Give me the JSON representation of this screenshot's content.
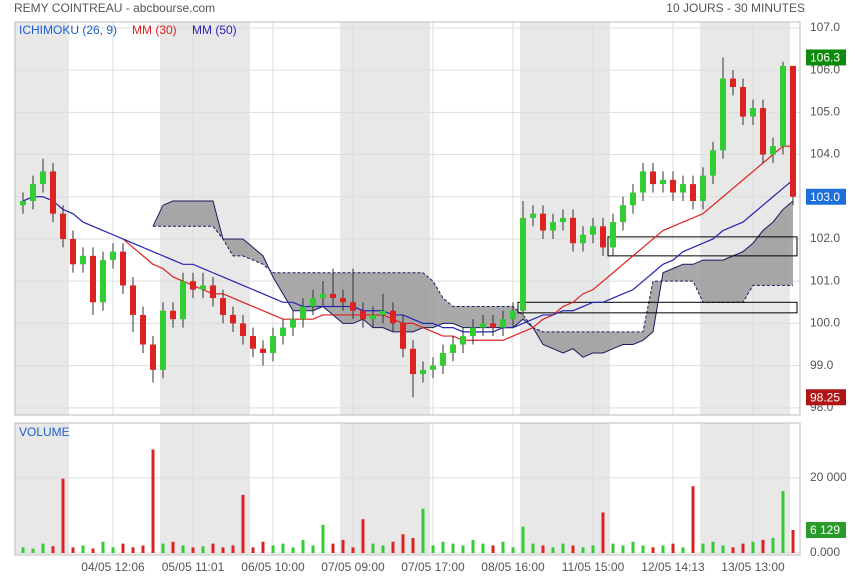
{
  "chart_data": {
    "type": "candlestick",
    "title": "REMY COINTREAU - abcbourse.com",
    "subtitle": "10 JOURS - 30 MINUTES",
    "xticks": [
      {
        "value": 9,
        "label": "04/05 12:06"
      },
      {
        "value": 17,
        "label": "05/05 11:01"
      },
      {
        "value": 25,
        "label": "06/05 10:00"
      },
      {
        "value": 33,
        "label": "07/05 09:00"
      },
      {
        "value": 41,
        "label": "07/05 17:00"
      },
      {
        "value": 49,
        "label": "08/05 16:00"
      },
      {
        "value": 57,
        "label": "11/05 15:00"
      },
      {
        "value": 65,
        "label": "12/05 14:13"
      },
      {
        "value": 73,
        "label": "13/05 13:00"
      }
    ],
    "ylim": [
      97.83,
      107.14
    ],
    "yticks": [
      {
        "value": 98,
        "label": "98.0"
      },
      {
        "value": 99,
        "label": "99.0"
      },
      {
        "value": 100,
        "label": "100.0"
      },
      {
        "value": 101,
        "label": "101.0"
      },
      {
        "value": 102,
        "label": "102.0"
      },
      {
        "value": 103,
        "label": "103.0"
      },
      {
        "value": 104,
        "label": "104.0"
      },
      {
        "value": 105,
        "label": "105.0"
      },
      {
        "value": 106,
        "label": "106.0"
      },
      {
        "value": 107,
        "label": "107.0"
      }
    ],
    "grid": true,
    "candles": {
      "up_color": "#33cc33",
      "down_color": "#dd2222",
      "open": [
        102.8,
        102.9,
        103.3,
        103.6,
        102.6,
        102.0,
        101.4,
        101.6,
        100.5,
        101.5,
        101.7,
        100.9,
        100.2,
        99.5,
        98.9,
        100.3,
        100.1,
        101.0,
        100.8,
        100.9,
        100.6,
        100.2,
        100.0,
        99.7,
        99.4,
        99.3,
        99.7,
        99.9,
        100.1,
        100.4,
        100.6,
        100.7,
        100.6,
        100.5,
        100.3,
        100.1,
        100.2,
        100.3,
        100.0,
        99.4,
        98.8,
        98.9,
        99.0,
        99.3,
        99.5,
        99.7,
        99.9,
        100.0,
        99.9,
        100.1,
        100.3,
        102.5,
        102.6,
        102.2,
        102.4,
        102.5,
        101.9,
        102.1,
        102.3,
        101.8,
        102.4,
        102.8,
        103.1,
        103.6,
        103.3,
        103.4,
        103.1,
        103.3,
        102.9,
        103.5,
        104.1,
        105.8,
        105.6,
        104.9,
        105.1,
        104.0,
        104.2,
        106.1
      ],
      "high": [
        103.1,
        103.5,
        103.9,
        103.8,
        102.8,
        102.2,
        101.8,
        101.8,
        101.7,
        101.9,
        101.9,
        101.1,
        100.4,
        99.7,
        100.5,
        100.5,
        101.2,
        101.2,
        101.2,
        101.1,
        100.8,
        100.4,
        100.2,
        99.9,
        99.6,
        99.9,
        100.1,
        100.3,
        100.6,
        100.8,
        101.0,
        101.3,
        100.8,
        101.3,
        100.5,
        100.4,
        100.7,
        100.5,
        100.2,
        99.6,
        99.1,
        99.2,
        99.5,
        99.7,
        99.9,
        100.1,
        100.2,
        100.2,
        100.3,
        100.5,
        102.9,
        102.8,
        102.8,
        102.6,
        102.7,
        102.7,
        102.3,
        102.5,
        102.5,
        102.6,
        103.0,
        103.3,
        103.8,
        103.8,
        103.6,
        103.6,
        103.5,
        103.5,
        103.7,
        104.3,
        106.3,
        106.0,
        105.8,
        105.3,
        105.3,
        104.4,
        106.2,
        106.1
      ],
      "low": [
        102.6,
        102.7,
        103.1,
        102.4,
        101.8,
        101.2,
        101.2,
        100.2,
        100.3,
        101.3,
        100.7,
        99.8,
        99.3,
        98.6,
        98.7,
        99.9,
        99.9,
        100.6,
        100.6,
        100.4,
        100.0,
        99.8,
        99.5,
        99.2,
        99.0,
        99.1,
        99.5,
        99.7,
        99.9,
        100.2,
        100.4,
        100.4,
        100.3,
        100.1,
        99.9,
        99.9,
        100.0,
        99.8,
        99.2,
        98.25,
        98.6,
        98.7,
        98.8,
        99.1,
        99.3,
        99.5,
        99.7,
        99.7,
        99.7,
        99.9,
        100.2,
        102.3,
        102.0,
        102.0,
        102.2,
        101.7,
        101.7,
        101.9,
        101.6,
        101.6,
        102.2,
        102.6,
        102.9,
        103.1,
        103.1,
        102.9,
        102.9,
        102.7,
        102.7,
        103.3,
        103.9,
        105.4,
        104.7,
        104.7,
        103.8,
        103.8,
        104.0,
        102.8
      ],
      "close": [
        102.9,
        103.3,
        103.6,
        102.6,
        102.0,
        101.4,
        101.6,
        100.5,
        101.5,
        101.7,
        100.9,
        100.2,
        99.5,
        98.9,
        100.3,
        100.1,
        101.0,
        100.8,
        100.9,
        100.6,
        100.2,
        100.0,
        99.7,
        99.4,
        99.3,
        99.7,
        99.9,
        100.1,
        100.4,
        100.6,
        100.7,
        100.6,
        100.5,
        100.3,
        100.1,
        100.2,
        100.3,
        100.0,
        99.4,
        98.8,
        98.9,
        99.0,
        99.3,
        99.5,
        99.7,
        99.9,
        100.0,
        99.9,
        100.1,
        100.3,
        102.5,
        102.6,
        102.2,
        102.4,
        102.5,
        101.9,
        102.1,
        102.3,
        101.8,
        102.4,
        102.8,
        103.1,
        103.6,
        103.3,
        103.4,
        103.1,
        103.3,
        102.9,
        103.5,
        104.1,
        105.8,
        105.6,
        104.9,
        105.1,
        104.0,
        104.2,
        106.1,
        103.0
      ]
    },
    "ichimoku": {
      "name": "ICHIMOKU (26, 9)",
      "color": "#1e5fcf",
      "fill": "#9a9a9a",
      "span_a": [
        null,
        null,
        null,
        null,
        null,
        null,
        null,
        null,
        null,
        null,
        null,
        null,
        null,
        102.3,
        102.8,
        102.9,
        102.9,
        102.9,
        102.9,
        102.9,
        102.0,
        102.0,
        102.0,
        101.8,
        101.6,
        101.1,
        100.7,
        100.3,
        100.3,
        100.3,
        100.4,
        100.2,
        100.0,
        100.0,
        100.1,
        99.9,
        99.9,
        99.8,
        99.8,
        99.8,
        99.9,
        99.9,
        100.0,
        100.0,
        99.9,
        99.9,
        99.9,
        99.9,
        99.9,
        99.9,
        100.1,
        99.9,
        99.5,
        99.4,
        99.3,
        99.4,
        99.2,
        99.3,
        99.3,
        99.4,
        99.5,
        99.5,
        99.6,
        99.8,
        101.2,
        101.3,
        101.4,
        101.4,
        101.5,
        101.5,
        101.5,
        101.6,
        101.7,
        101.9,
        102.2,
        102.4,
        102.7,
        102.9
      ],
      "span_b": [
        null,
        null,
        null,
        null,
        null,
        null,
        null,
        null,
        null,
        null,
        null,
        null,
        null,
        102.3,
        102.3,
        102.3,
        102.3,
        102.3,
        102.3,
        102.3,
        102.0,
        101.6,
        101.6,
        101.5,
        101.4,
        101.2,
        101.2,
        101.2,
        101.2,
        101.2,
        101.2,
        101.2,
        101.2,
        101.2,
        101.2,
        101.2,
        101.2,
        101.2,
        101.2,
        101.2,
        101.2,
        101.0,
        100.6,
        100.4,
        100.4,
        100.4,
        100.4,
        100.4,
        100.4,
        100.4,
        100.2,
        99.9,
        99.8,
        99.8,
        99.8,
        99.8,
        99.8,
        99.8,
        99.8,
        99.8,
        99.8,
        99.8,
        99.8,
        101.0,
        101.0,
        101.0,
        101.0,
        101.0,
        100.5,
        100.5,
        100.5,
        100.5,
        100.5,
        100.9,
        100.9,
        100.9,
        100.9,
        100.9
      ]
    },
    "series": [
      {
        "name": "MM (30)",
        "color": "#e02020",
        "values": [
          null,
          null,
          null,
          null,
          null,
          null,
          null,
          null,
          null,
          null,
          102.0,
          101.8,
          101.6,
          101.4,
          101.3,
          101.1,
          101.0,
          100.9,
          100.8,
          100.7,
          100.7,
          100.6,
          100.5,
          100.4,
          100.3,
          100.2,
          100.1,
          100.1,
          100.1,
          100.1,
          100.2,
          100.2,
          100.2,
          100.2,
          100.2,
          100.2,
          100.2,
          100.1,
          100.0,
          100.0,
          99.9,
          99.8,
          99.7,
          99.7,
          99.6,
          99.6,
          99.6,
          99.6,
          99.6,
          99.7,
          99.8,
          99.9,
          100.1,
          100.2,
          100.4,
          100.5,
          100.7,
          100.8,
          101.0,
          101.2,
          101.4,
          101.6,
          101.8,
          102.0,
          102.2,
          102.3,
          102.4,
          102.5,
          102.6,
          102.8,
          103.0,
          103.2,
          103.4,
          103.6,
          103.8,
          104.0,
          104.2,
          104.2
        ]
      },
      {
        "name": "MM (50)",
        "color": "#2424b4",
        "values": [
          102.9,
          103.0,
          103.0,
          102.9,
          102.7,
          102.6,
          102.4,
          102.3,
          102.2,
          102.1,
          102.0,
          101.9,
          101.8,
          101.7,
          101.6,
          101.5,
          101.4,
          101.4,
          101.3,
          101.2,
          101.1,
          101.0,
          100.9,
          100.8,
          100.7,
          100.6,
          100.5,
          100.5,
          100.4,
          100.4,
          100.4,
          100.4,
          100.4,
          100.4,
          100.3,
          100.3,
          100.3,
          100.2,
          100.2,
          100.1,
          100.0,
          100.0,
          99.9,
          99.9,
          99.8,
          99.8,
          99.8,
          99.8,
          99.9,
          99.9,
          100.0,
          100.1,
          100.2,
          100.2,
          100.3,
          100.3,
          100.4,
          100.5,
          100.5,
          100.6,
          100.7,
          100.8,
          101.0,
          101.2,
          101.4,
          101.5,
          101.7,
          101.8,
          101.9,
          102.0,
          102.2,
          102.3,
          102.4,
          102.6,
          102.8,
          103.0,
          103.2,
          103.4
        ]
      }
    ],
    "zones": [
      {
        "start": 59,
        "low": 101.6,
        "high": 102.05
      },
      {
        "start": 50,
        "low": 100.25,
        "high": 100.5
      }
    ],
    "markers": {
      "high": 106.3,
      "last": {
        "value": 103,
        "label": "103.0"
      },
      "low": 98.25
    },
    "volume": {
      "title": "VOLUME",
      "ylim": [
        0,
        34100
      ],
      "yticks": [
        {
          "value": 0,
          "label": "0.000"
        },
        {
          "value": 20000,
          "label": "20 000"
        }
      ],
      "values": [
        1500,
        1200,
        2500,
        1800,
        19800,
        1500,
        2000,
        1200,
        3000,
        1500,
        2500,
        1500,
        2000,
        27600,
        2500,
        3000,
        2000,
        1500,
        1800,
        2500,
        1500,
        2000,
        15500,
        1500,
        3000,
        2000,
        2500,
        1500,
        3500,
        2000,
        7500,
        2500,
        3500,
        1500,
        9000,
        2500,
        2000,
        3000,
        5000,
        4000,
        11800,
        2000,
        3000,
        2500,
        2000,
        3500,
        2500,
        2000,
        3000,
        1500,
        7000,
        2500,
        2000,
        1500,
        2500,
        2000,
        1500,
        2000,
        10800,
        2500,
        2000,
        3000,
        2000,
        1500,
        2000,
        2500,
        1500,
        17800,
        2500,
        3000,
        2000,
        1500,
        2500,
        3000,
        3500,
        4000,
        16500,
        6129
      ],
      "last": {
        "value": 6129,
        "label": "6 129"
      }
    }
  }
}
